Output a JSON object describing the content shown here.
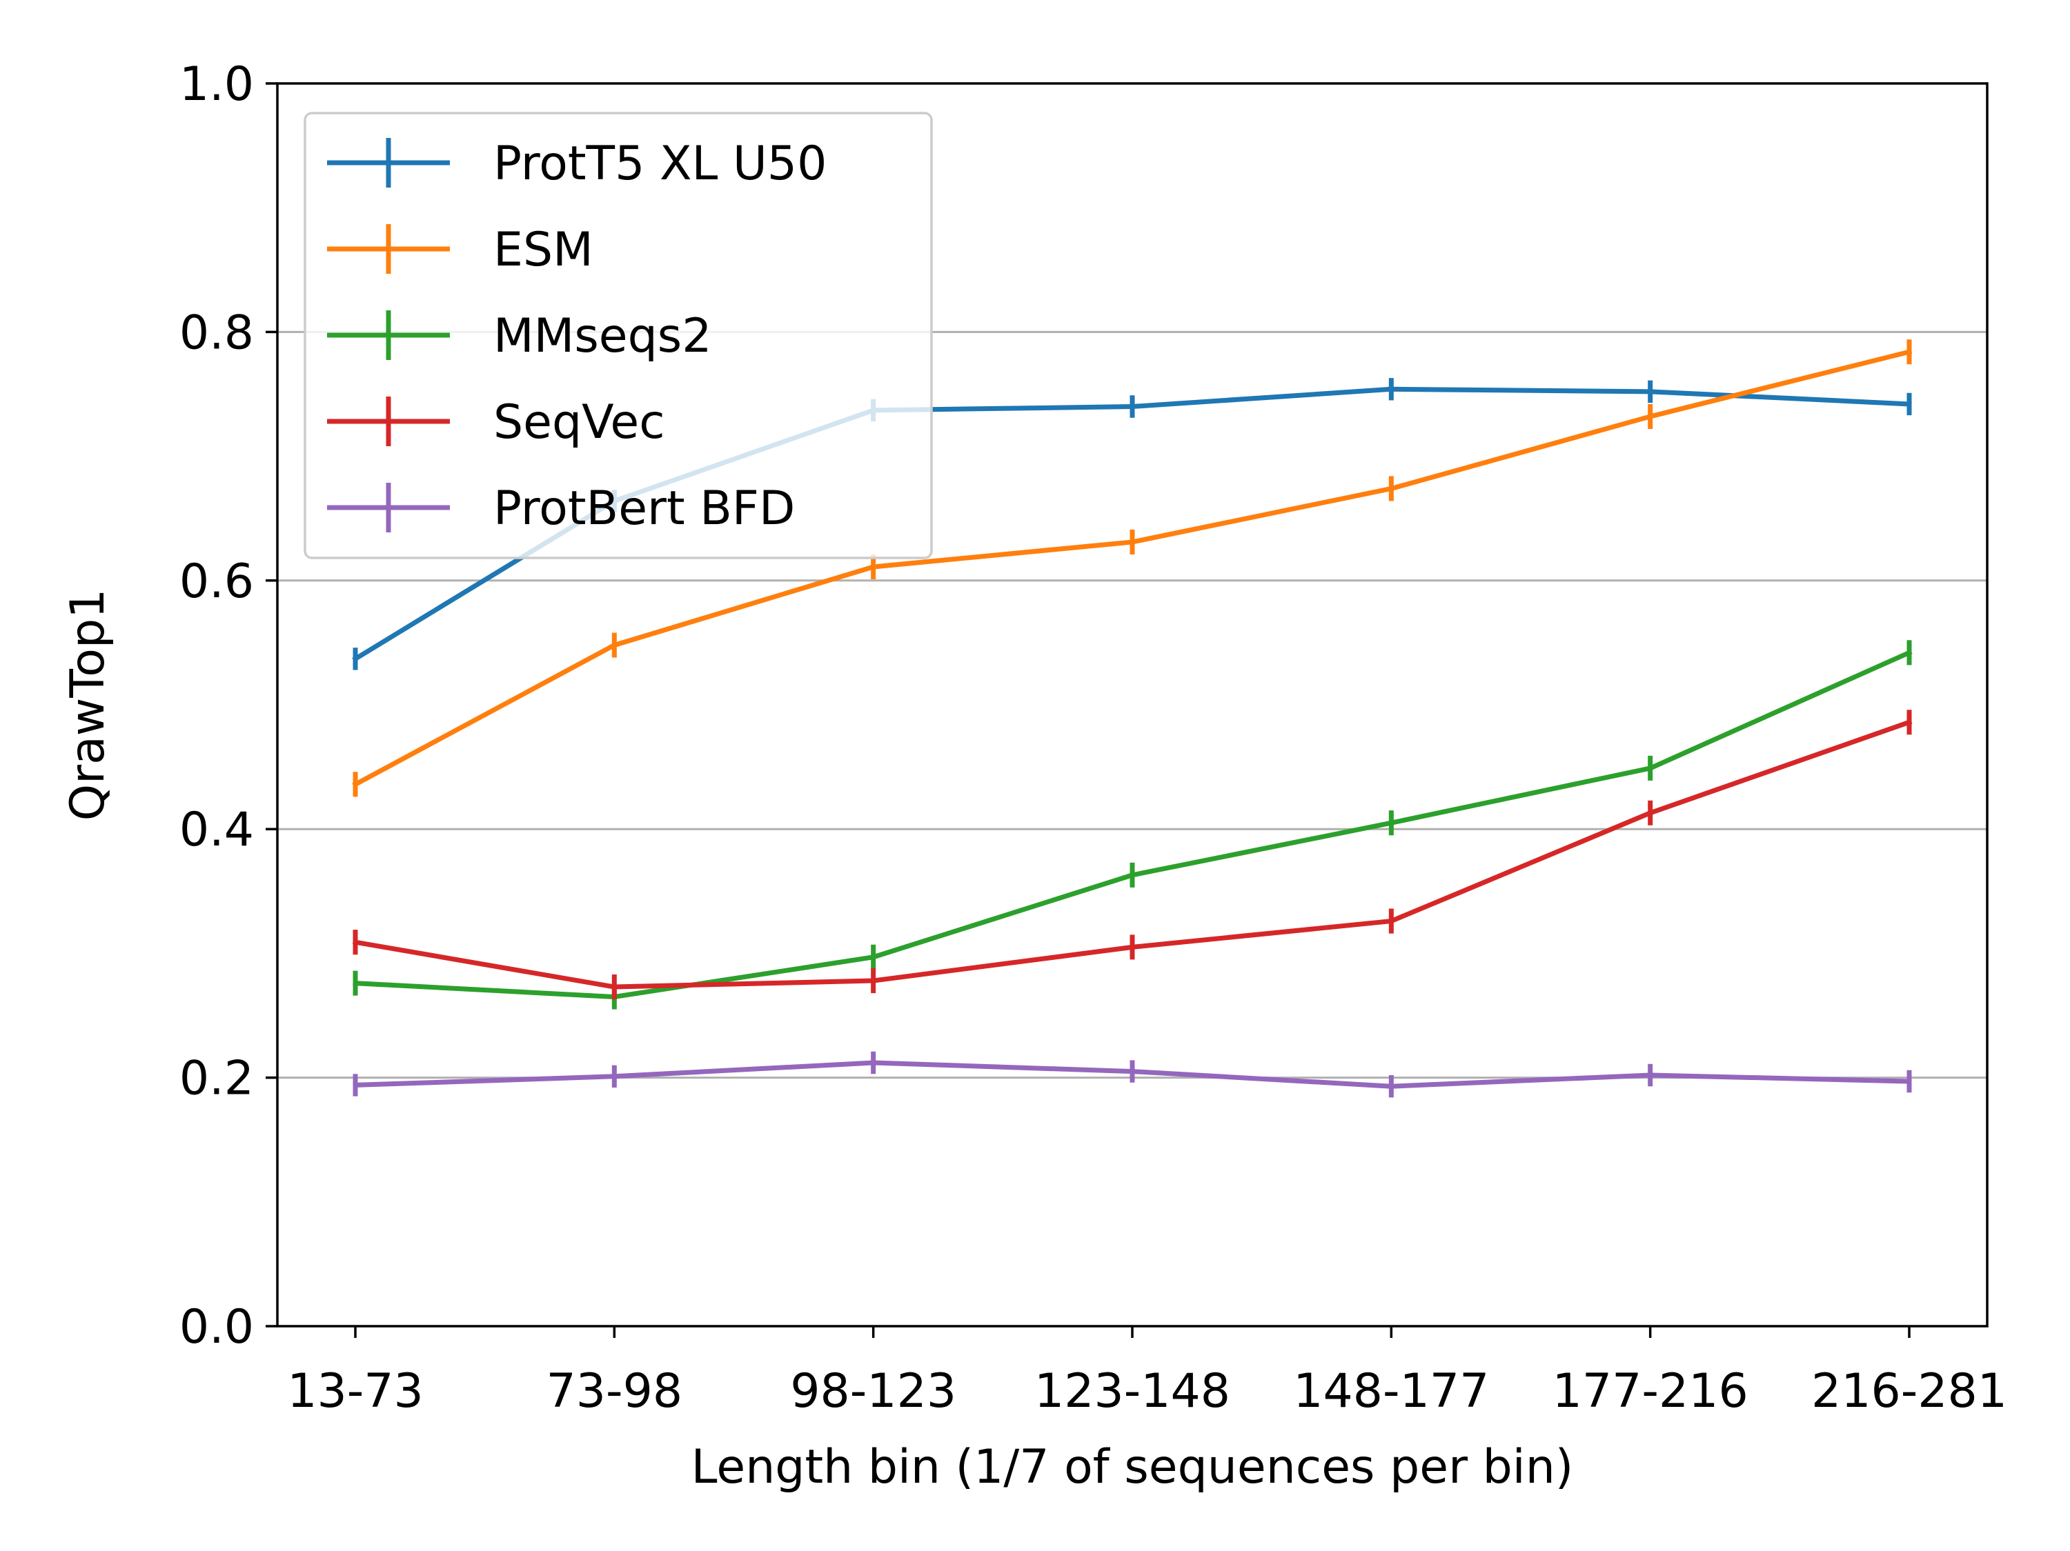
{
  "chart_data": {
    "type": "line",
    "xlabel": "Length bin (1/7 of sequences per bin)",
    "ylabel": "QrawTop1",
    "categories": [
      "13-73",
      "73-98",
      "98-123",
      "123-148",
      "148-177",
      "177-216",
      "216-281"
    ],
    "ylim": [
      0,
      1.0
    ],
    "yticks": [
      "0.0",
      "0.2",
      "0.4",
      "0.6",
      "0.8",
      "1.0"
    ],
    "grid": "horizontal",
    "legend_position": "top-left",
    "series": [
      {
        "name": "ProtT5 XL U50",
        "color": "#1f77b4",
        "values": [
          0.537,
          0.664,
          0.737,
          0.74,
          0.754,
          0.752,
          0.742
        ],
        "error": [
          0.009,
          0.009,
          0.009,
          0.009,
          0.009,
          0.009,
          0.009
        ]
      },
      {
        "name": "ESM",
        "color": "#ff7f0e",
        "values": [
          0.436,
          0.548,
          0.611,
          0.631,
          0.674,
          0.732,
          0.784
        ],
        "error": [
          0.01,
          0.01,
          0.01,
          0.01,
          0.01,
          0.01,
          0.01
        ]
      },
      {
        "name": "MMseqs2",
        "color": "#2ca02c",
        "values": [
          0.276,
          0.265,
          0.297,
          0.363,
          0.405,
          0.449,
          0.542
        ],
        "error": [
          0.01,
          0.01,
          0.01,
          0.01,
          0.01,
          0.01,
          0.01
        ]
      },
      {
        "name": "SeqVec",
        "color": "#d62728",
        "values": [
          0.309,
          0.273,
          0.278,
          0.305,
          0.326,
          0.413,
          0.486
        ],
        "error": [
          0.01,
          0.01,
          0.01,
          0.01,
          0.01,
          0.01,
          0.01
        ]
      },
      {
        "name": "ProtBert BFD",
        "color": "#9467bd",
        "values": [
          0.194,
          0.201,
          0.212,
          0.205,
          0.193,
          0.202,
          0.197
        ],
        "error": [
          0.009,
          0.009,
          0.009,
          0.009,
          0.009,
          0.009,
          0.009
        ]
      }
    ]
  }
}
